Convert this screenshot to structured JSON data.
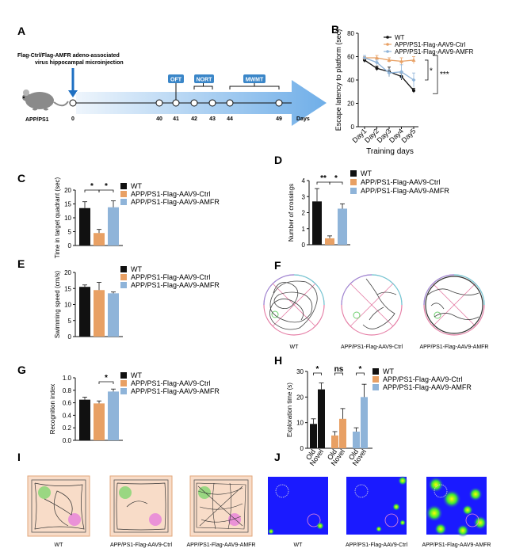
{
  "colors": {
    "wt": "#111111",
    "ctrl": "#e8a064",
    "amfr": "#8fb4d9",
    "arrow_light": "#d6e6f7",
    "arrow_dark": "#7fb3e6",
    "badge": "#3a86c8",
    "panel_i_bg": "#f8dcc8",
    "green_zone": "#8fd67a",
    "pink_zone": "#e889d8",
    "heat_bg": "#1a1aff"
  },
  "panel_labels": {
    "A": "A",
    "B": "B",
    "C": "C",
    "D": "D",
    "E": "E",
    "F": "F",
    "G": "G",
    "H": "H",
    "I": "I",
    "J": "J"
  },
  "timeline": {
    "injection_text_line1": "Flag-Ctrl/Flag-AMFR adeno-associated",
    "injection_text_line2": "virus hippocampal microinjection",
    "mouse_label": "APP/PS1",
    "day0": "0",
    "days": [
      "40",
      "41",
      "42",
      "43",
      "44",
      "49"
    ],
    "days_label": "Days",
    "tests": [
      "OFT",
      "NORT",
      "MWMT"
    ]
  },
  "legend": {
    "wt": "WT",
    "ctrl": "APP/PS1-Flag-AAV9-Ctrl",
    "amfr": "APP/PS1-Flag-AAV9-AMFR"
  },
  "significance": {
    "star": "*",
    "two_star": "**",
    "three_star": "***",
    "ns": "ns"
  },
  "chart_data": [
    {
      "panel": "B",
      "type": "line",
      "ylabel": "Escape latency to platform (sec)",
      "xlabel": "Training  days",
      "categories": [
        "Day1",
        "Day2",
        "Day3",
        "Day4",
        "Day5"
      ],
      "ylim": [
        0,
        80
      ],
      "yticks": [
        "0",
        "20",
        "40",
        "60",
        "80"
      ],
      "series": [
        {
          "name": "WT",
          "values": [
            57,
            50,
            47,
            43,
            31
          ],
          "errors": [
            2,
            2,
            4,
            3,
            2
          ]
        },
        {
          "name": "APP/PS1-Flag-AAV9-Ctrl",
          "values": [
            59,
            59,
            57,
            56,
            57
          ],
          "errors": [
            1,
            2,
            2,
            3,
            3
          ]
        },
        {
          "name": "APP/PS1-Flag-AAV9-AMFR",
          "values": [
            59,
            55,
            46,
            47,
            40
          ],
          "errors": [
            2,
            2,
            3,
            6,
            6
          ]
        }
      ]
    },
    {
      "panel": "C",
      "type": "bar",
      "ylabel": "Time in target quadrant (sec)",
      "ylim": [
        0,
        20
      ],
      "yticks": [
        "0",
        "5",
        "10",
        "15",
        "20"
      ],
      "values": [
        13.5,
        4.5,
        13.8
      ],
      "errors": [
        2.3,
        1.3,
        2.3
      ]
    },
    {
      "panel": "D",
      "type": "bar",
      "ylabel": "Number of crossings",
      "ylim": [
        0,
        4
      ],
      "yticks": [
        "0",
        "1",
        "2",
        "3",
        "4"
      ],
      "values": [
        2.7,
        0.4,
        2.25
      ],
      "errors": [
        0.8,
        0.15,
        0.3
      ]
    },
    {
      "panel": "E",
      "type": "bar",
      "ylabel": "Swimming speed (cm/s)",
      "ylim": [
        0,
        20
      ],
      "yticks": [
        "0",
        "5",
        "10",
        "15",
        "20"
      ],
      "values": [
        15.5,
        14.5,
        13.5
      ],
      "errors": [
        0.6,
        2.4,
        0.4
      ]
    },
    {
      "panel": "G",
      "type": "bar",
      "ylabel": "Recognition index",
      "ylim": [
        0,
        1.0
      ],
      "yticks": [
        "0.0",
        "0.2",
        "0.4",
        "0.6",
        "0.8",
        "1.0"
      ],
      "values": [
        0.65,
        0.59,
        0.78
      ],
      "errors": [
        0.04,
        0.04,
        0.04
      ]
    },
    {
      "panel": "H",
      "type": "bar",
      "ylabel": "Exploration time (s)",
      "ylim": [
        0,
        30
      ],
      "yticks": [
        "0",
        "10",
        "20",
        "30"
      ],
      "categories": [
        "Old",
        "Novel",
        "Old",
        "Novel",
        "Old",
        "Novel"
      ],
      "values": [
        9.5,
        23,
        5,
        11.5,
        6.5,
        20
      ],
      "errors": [
        2,
        2.5,
        1.5,
        4,
        1.5,
        5
      ]
    }
  ],
  "groups": [
    "WT",
    "APP/PS1-Flag-AAV9-Ctrl",
    "APP/PS1-Flag-AAV9-AMFR"
  ]
}
